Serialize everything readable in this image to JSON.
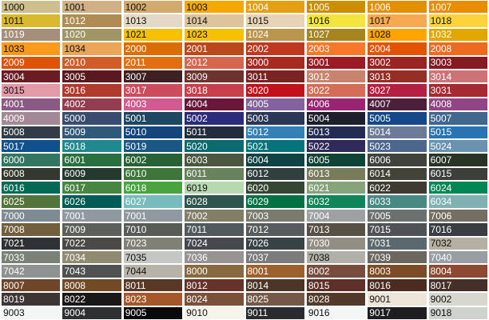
{
  "rows": [
    [
      [
        "1000",
        "#cdc08c",
        "d"
      ],
      [
        "1001",
        "#d0b084",
        "d"
      ],
      [
        "1002",
        "#d2aa6d",
        "d"
      ],
      [
        "1003",
        "#f5a900",
        "d"
      ],
      [
        "1004",
        "#e4a010",
        "l"
      ],
      [
        "1005",
        "#cb8e00",
        "l"
      ],
      [
        "1006",
        "#e29000",
        "l"
      ],
      [
        "1007",
        "#e88c00",
        "l"
      ]
    ],
    [
      [
        "1011",
        "#d9b92e",
        "d"
      ],
      [
        "1012",
        "#b08c55",
        "l"
      ],
      [
        "1013",
        "#e3d9c6",
        "d"
      ],
      [
        "1014",
        "#ddc49a",
        "d"
      ],
      [
        "1015",
        "#e6d2b5",
        "d"
      ],
      [
        "1016",
        "#f1e53c",
        "d"
      ],
      [
        "1017",
        "#f6a950",
        "d"
      ],
      [
        "1018",
        "#fad43a",
        "d"
      ]
    ],
    [
      [
        "1019",
        "#a48f7a",
        "l"
      ],
      [
        "1020",
        "#a09565",
        "l"
      ],
      [
        "1021",
        "#f6c000",
        "d"
      ],
      [
        "1023",
        "#f7c000",
        "d"
      ],
      [
        "1024",
        "#ba954c",
        "l"
      ],
      [
        "1027",
        "#a7851e",
        "l"
      ],
      [
        "1028",
        "#ffa400",
        "d"
      ],
      [
        "1032",
        "#e2a800",
        "l"
      ]
    ],
    [
      [
        "1033",
        "#f99a1c",
        "d"
      ],
      [
        "1034",
        "#eba557",
        "d"
      ],
      [
        "2000",
        "#da6e00",
        "l"
      ],
      [
        "2001",
        "#ba481b",
        "l"
      ],
      [
        "2002",
        "#bf3922",
        "l"
      ],
      [
        "2003",
        "#f67828",
        "l"
      ],
      [
        "2004",
        "#e25303",
        "l"
      ],
      [
        "2008",
        "#ed6b21",
        "l"
      ]
    ],
    [
      [
        "2009",
        "#de5307",
        "l"
      ],
      [
        "2010",
        "#d05d28",
        "l"
      ],
      [
        "2011",
        "#e26e0e",
        "l"
      ],
      [
        "2012",
        "#d5654d",
        "l"
      ],
      [
        "3000",
        "#a72920",
        "l"
      ],
      [
        "3001",
        "#9b1a23",
        "l"
      ],
      [
        "3002",
        "#9b2321",
        "l"
      ],
      [
        "3003",
        "#861a22",
        "l"
      ]
    ],
    [
      [
        "3004",
        "#6b1c23",
        "l"
      ],
      [
        "3005",
        "#59191f",
        "l"
      ],
      [
        "3007",
        "#3e2022",
        "l"
      ],
      [
        "3009",
        "#6d342d",
        "l"
      ],
      [
        "3011",
        "#792423",
        "l"
      ],
      [
        "3012",
        "#c6846d",
        "l"
      ],
      [
        "3013",
        "#972e25",
        "l"
      ],
      [
        "3014",
        "#cb7375",
        "l"
      ]
    ],
    [
      [
        "3015",
        "#e29aa8",
        "d"
      ],
      [
        "3016",
        "#b03b2c",
        "l"
      ],
      [
        "3017",
        "#cd4c5b",
        "l"
      ],
      [
        "3018",
        "#c73f4a",
        "l"
      ],
      [
        "3020",
        "#c1121c",
        "l"
      ],
      [
        "3022",
        "#d56d56",
        "l"
      ],
      [
        "3027",
        "#b42041",
        "l"
      ],
      [
        "3031",
        "#a52a32",
        "l"
      ]
    ],
    [
      [
        "4001",
        "#8a5a83",
        "l"
      ],
      [
        "4002",
        "#933d50",
        "l"
      ],
      [
        "4003",
        "#d15b8f",
        "l"
      ],
      [
        "4004",
        "#691639",
        "l"
      ],
      [
        "4005",
        "#83639d",
        "l"
      ],
      [
        "4006",
        "#992572",
        "l"
      ],
      [
        "4007",
        "#4a203b",
        "l"
      ],
      [
        "4008",
        "#904684",
        "l"
      ]
    ],
    [
      [
        "4009",
        "#a38995",
        "l"
      ],
      [
        "5000",
        "#384c70",
        "l"
      ],
      [
        "5001",
        "#1f4764",
        "l"
      ],
      [
        "5002",
        "#2b2c7c",
        "l"
      ],
      [
        "5003",
        "#2a3756",
        "l"
      ],
      [
        "5004",
        "#1d1f2a",
        "l"
      ],
      [
        "5005",
        "#154889",
        "l"
      ],
      [
        "5007",
        "#41678d",
        "l"
      ]
    ],
    [
      [
        "5008",
        "#313c48",
        "l"
      ],
      [
        "5009",
        "#2e5978",
        "l"
      ],
      [
        "5010",
        "#13447c",
        "l"
      ],
      [
        "5011",
        "#232c3f",
        "l"
      ],
      [
        "5012",
        "#3481b8",
        "l"
      ],
      [
        "5013",
        "#232d53",
        "l"
      ],
      [
        "5014",
        "#6c7c98",
        "l"
      ],
      [
        "5015",
        "#2874b2",
        "l"
      ]
    ],
    [
      [
        "5017",
        "#0e518d",
        "l"
      ],
      [
        "5018",
        "#21888f",
        "l"
      ],
      [
        "5019",
        "#1a5784",
        "l"
      ],
      [
        "5020",
        "#0b6a6e",
        "l"
      ],
      [
        "5021",
        "#07737a",
        "l"
      ],
      [
        "5022",
        "#2f2a5a",
        "l"
      ],
      [
        "5023",
        "#4d668e",
        "l"
      ],
      [
        "5024",
        "#6a93b0",
        "l"
      ]
    ],
    [
      [
        "6000",
        "#327662",
        "l"
      ],
      [
        "6001",
        "#28713e",
        "l"
      ],
      [
        "6002",
        "#276235",
        "l"
      ],
      [
        "6003",
        "#4b573e",
        "l"
      ],
      [
        "6004",
        "#0e4243",
        "l"
      ],
      [
        "6005",
        "#0f4336",
        "l"
      ],
      [
        "6006",
        "#40433b",
        "l"
      ],
      [
        "6007",
        "#283424",
        "l"
      ]
    ],
    [
      [
        "6008",
        "#35382e",
        "l"
      ],
      [
        "6009",
        "#26392f",
        "l"
      ],
      [
        "6010",
        "#3e753b",
        "l"
      ],
      [
        "6011",
        "#68825b",
        "l"
      ],
      [
        "6012",
        "#31403d",
        "l"
      ],
      [
        "6013",
        "#797c5a",
        "l"
      ],
      [
        "6014",
        "#444337",
        "l"
      ],
      [
        "6015",
        "#3d403a",
        "l"
      ]
    ],
    [
      [
        "6016",
        "#026a52",
        "l"
      ],
      [
        "6017",
        "#468641",
        "l"
      ],
      [
        "6018",
        "#48a43f",
        "l"
      ],
      [
        "6019",
        "#b7d9b1",
        "d"
      ],
      [
        "6020",
        "#354733",
        "l"
      ],
      [
        "6021",
        "#86a47c",
        "l"
      ],
      [
        "6022",
        "#3e3c32",
        "l"
      ],
      [
        "6024",
        "#008754",
        "l"
      ]
    ],
    [
      [
        "6025",
        "#53753c",
        "l"
      ],
      [
        "6026",
        "#005c54",
        "l"
      ],
      [
        "6027",
        "#77bbbd",
        "l"
      ],
      [
        "6028",
        "#2e554b",
        "l"
      ],
      [
        "6029",
        "#007243",
        "l"
      ],
      [
        "6032",
        "#0f8558",
        "l"
      ],
      [
        "6033",
        "#478a84",
        "l"
      ],
      [
        "6034",
        "#7fb0b2",
        "l"
      ]
    ],
    [
      [
        "7000",
        "#7e8b92",
        "l"
      ],
      [
        "7001",
        "#8f999f",
        "l"
      ],
      [
        "7001",
        "#8f999f",
        "l"
      ],
      [
        "7002",
        "#817f68",
        "l"
      ],
      [
        "7003",
        "#7a7b6d",
        "l"
      ],
      [
        "7004",
        "#9ea0a1",
        "l"
      ],
      [
        "7005",
        "#6b716f",
        "l"
      ],
      [
        "7006",
        "#756f61",
        "l"
      ]
    ],
    [
      [
        "7008",
        "#745f3d",
        "l"
      ],
      [
        "7009",
        "#5d6058",
        "l"
      ],
      [
        "7010",
        "#585c56",
        "l"
      ],
      [
        "7011",
        "#52595d",
        "l"
      ],
      [
        "7012",
        "#575d5e",
        "l"
      ],
      [
        "7013",
        "#575044",
        "l"
      ],
      [
        "7015",
        "#4f5358",
        "l"
      ],
      [
        "7016",
        "#383e42",
        "l"
      ]
    ],
    [
      [
        "7021",
        "#2f3234",
        "l"
      ],
      [
        "7022",
        "#4c4a44",
        "l"
      ],
      [
        "7023",
        "#808076",
        "l"
      ],
      [
        "7024",
        "#45494e",
        "l"
      ],
      [
        "7026",
        "#374345",
        "l"
      ],
      [
        "7030",
        "#928e85",
        "l"
      ],
      [
        "7031",
        "#5b686d",
        "l"
      ],
      [
        "7032",
        "#b5b0a1",
        "d"
      ]
    ],
    [
      [
        "7033",
        "#7a8277",
        "l"
      ],
      [
        "7034",
        "#8f8a70",
        "l"
      ],
      [
        "7035",
        "#c5c7c4",
        "d"
      ],
      [
        "7036",
        "#979392",
        "l"
      ],
      [
        "7037",
        "#7a7b7a",
        "l"
      ],
      [
        "7038",
        "#b0b0a9",
        "d"
      ],
      [
        "7039",
        "#6b665e",
        "l"
      ],
      [
        "7040",
        "#989ea1",
        "l"
      ]
    ],
    [
      [
        "7042",
        "#8e9291",
        "l"
      ],
      [
        "7043",
        "#4f5250",
        "l"
      ],
      [
        "7044",
        "#b7b3a8",
        "d"
      ],
      [
        "8000",
        "#89693f",
        "l"
      ],
      [
        "8001",
        "#9d622b",
        "l"
      ],
      [
        "8002",
        "#794d3e",
        "l"
      ],
      [
        "8003",
        "#7e4b27",
        "l"
      ],
      [
        "8004",
        "#8d4931",
        "l"
      ]
    ],
    [
      [
        "8007",
        "#70462b",
        "l"
      ],
      [
        "8008",
        "#724a25",
        "l"
      ],
      [
        "8011",
        "#5a3826",
        "l"
      ],
      [
        "8012",
        "#66332b",
        "l"
      ],
      [
        "8014",
        "#4a3526",
        "l"
      ],
      [
        "8015",
        "#5e2f26",
        "l"
      ],
      [
        "8016",
        "#4c2b20",
        "l"
      ],
      [
        "8017",
        "#442f29",
        "l"
      ]
    ],
    [
      [
        "8019",
        "#3d3635",
        "l"
      ],
      [
        "8022",
        "#1a1718",
        "l"
      ],
      [
        "8023",
        "#a45729",
        "l"
      ],
      [
        "8024",
        "#795038",
        "l"
      ],
      [
        "8025",
        "#755847",
        "l"
      ],
      [
        "8028",
        "#513a2a",
        "l"
      ],
      [
        "9001",
        "#ede6d8",
        "d"
      ],
      [
        "9002",
        "#d7d7cf",
        "d"
      ]
    ],
    [
      [
        "9003",
        "#f4f6f6",
        "d"
      ],
      [
        "9004",
        "#2e3032",
        "l"
      ],
      [
        "9005",
        "#0a0a0d",
        "l"
      ],
      [
        "9010",
        "#f4f4ec",
        "d"
      ],
      [
        "9011",
        "#292c2f",
        "l"
      ],
      [
        "9016",
        "#f4f6f6",
        "d"
      ],
      [
        "9017",
        "#1e1e20",
        "l"
      ],
      [
        "9018",
        "#cfd3cd",
        "d"
      ]
    ]
  ]
}
